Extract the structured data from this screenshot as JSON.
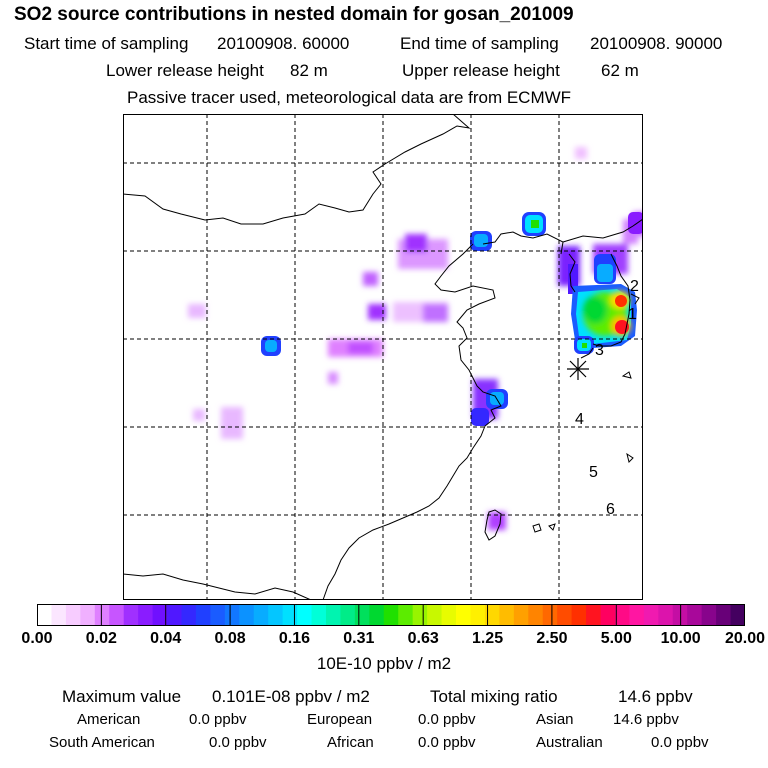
{
  "header": {
    "title": "SO2 source contributions in nested domain for gosan_201009",
    "start_label": "Start time of sampling",
    "start_value": "20100908. 60000",
    "end_label": "End time of sampling",
    "end_value": "20100908. 90000",
    "lower_label": "Lower release height",
    "lower_value": "82 m",
    "upper_label": "Upper release height",
    "upper_value": "62 m",
    "note": "Passive tracer used, meteorological data are from ECMWF"
  },
  "map": {
    "receptor_marker": "star-receptor",
    "trajectory_labels": [
      "1",
      "2",
      "3",
      "4",
      "5",
      "6"
    ]
  },
  "colorbar": {
    "labels": [
      "0.00",
      "0.02",
      "0.04",
      "0.08",
      "0.16",
      "0.31",
      "0.63",
      "1.25",
      "2.50",
      "5.00",
      "10.00",
      "20.00"
    ],
    "unit": "10E-10 ppbv / m2",
    "colors": [
      "#ffffff",
      "#fbe6ff",
      "#f7ccff",
      "#f0b0ff",
      "#df80ff",
      "#c755ff",
      "#a030ff",
      "#8a1cff",
      "#7010ff",
      "#5018ff",
      "#3428ff",
      "#2040ff",
      "#1a5cff",
      "#1277ff",
      "#0c92ff",
      "#08acff",
      "#04c6ff",
      "#00e0ff",
      "#00ffff",
      "#00ffd8",
      "#00f4b0",
      "#00ec88",
      "#00e05c",
      "#00d830",
      "#20e000",
      "#5cec00",
      "#98f400",
      "#c8f800",
      "#e8fc00",
      "#ffff00",
      "#fff000",
      "#ffd800",
      "#ffbc00",
      "#ffa000",
      "#ff8400",
      "#ff6800",
      "#ff4c00",
      "#ff3000",
      "#ff1420",
      "#ff0060",
      "#ff0a86",
      "#ff16a2",
      "#f01ab0",
      "#dc14ac",
      "#c40ea4",
      "#a8089a",
      "#88048c",
      "#680078",
      "#440060"
    ]
  },
  "stats": {
    "max_label": "Maximum value",
    "max_value": "0.101E-08 ppbv / m2",
    "total_label": "Total mixing ratio",
    "total_value": "14.6 ppbv",
    "regions": [
      {
        "name": "American",
        "value": "0.0 ppbv"
      },
      {
        "name": "European",
        "value": "0.0 ppbv"
      },
      {
        "name": "Asian",
        "value": "14.6 ppbv"
      },
      {
        "name": "South American",
        "value": "0.0 ppbv"
      },
      {
        "name": "African",
        "value": "0.0 ppbv"
      },
      {
        "name": "Australian",
        "value": "0.0 ppbv"
      }
    ]
  }
}
